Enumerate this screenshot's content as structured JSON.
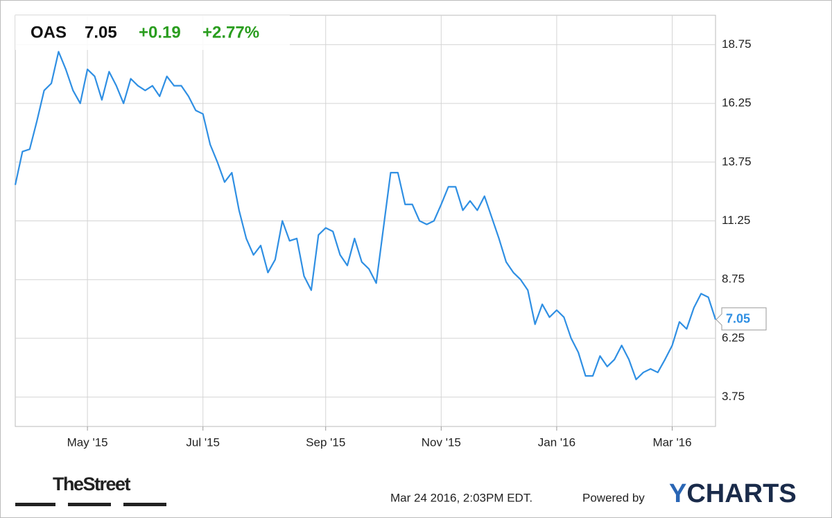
{
  "header": {
    "symbol": "OAS",
    "price": "7.05",
    "change": "+0.19",
    "change_pct": "+2.77%"
  },
  "chart_data": {
    "type": "line",
    "categories": [
      null,
      null,
      null,
      null,
      null,
      null,
      null,
      null,
      null,
      null,
      "May '15",
      null,
      null,
      null,
      null,
      null,
      null,
      null,
      null,
      null,
      null,
      null,
      null,
      null,
      null,
      null,
      "Jul '15",
      null,
      null,
      null,
      null,
      null,
      null,
      null,
      null,
      null,
      null,
      null,
      null,
      null,
      null,
      null,
      null,
      "Sep '15",
      null,
      null,
      null,
      null,
      null,
      null,
      null,
      null,
      null,
      null,
      null,
      null,
      null,
      null,
      null,
      "Nov '15",
      null,
      null,
      null,
      null,
      null,
      null,
      null,
      null,
      null,
      null,
      null,
      null,
      null,
      null,
      null,
      "Jan '16",
      null,
      null,
      null,
      null,
      null,
      null,
      null,
      null,
      null,
      null,
      null,
      null,
      null,
      null,
      null,
      "Mar '16",
      null,
      null,
      null,
      null,
      null,
      null
    ],
    "series": [
      {
        "name": "OAS",
        "color": "#2f8fe3",
        "values": [
          12.78,
          14.2,
          14.3,
          15.5,
          16.8,
          17.1,
          18.45,
          17.7,
          16.8,
          16.25,
          17.7,
          17.4,
          16.4,
          17.6,
          17.0,
          16.25,
          17.3,
          17.0,
          16.8,
          17.0,
          16.55,
          17.4,
          17.0,
          17.0,
          16.55,
          15.95,
          15.8,
          14.5,
          13.75,
          12.9,
          13.3,
          11.7,
          10.5,
          9.8,
          10.2,
          9.05,
          9.6,
          11.25,
          10.4,
          10.5,
          8.9,
          8.3,
          10.65,
          10.95,
          10.8,
          9.8,
          9.35,
          10.5,
          9.5,
          9.2,
          8.6,
          10.95,
          13.3,
          13.3,
          11.95,
          11.95,
          11.25,
          11.1,
          11.25,
          11.95,
          12.7,
          12.7,
          11.7,
          12.1,
          11.7,
          12.3,
          11.4,
          10.5,
          9.5,
          9.05,
          8.75,
          8.3,
          6.85,
          7.7,
          7.15,
          7.45,
          7.15,
          6.25,
          5.65,
          4.65,
          4.65,
          5.5,
          5.05,
          5.35,
          5.95,
          5.35,
          4.5,
          4.8,
          4.95,
          4.8,
          5.35,
          5.95,
          6.95,
          6.65,
          7.55,
          8.15,
          8.0,
          7.05
        ]
      }
    ],
    "ylim": [
      2.5,
      20
    ],
    "yticks": [
      3.75,
      6.25,
      8.75,
      11.25,
      13.75,
      16.25,
      18.75
    ],
    "grid": true
  },
  "footer": {
    "source_logo": "TheStreet",
    "timestamp": "Mar 24 2016, 2:03PM EDT.",
    "powered_by": "Powered by",
    "brand_y": "Y",
    "brand_rest": "CHARTS"
  }
}
